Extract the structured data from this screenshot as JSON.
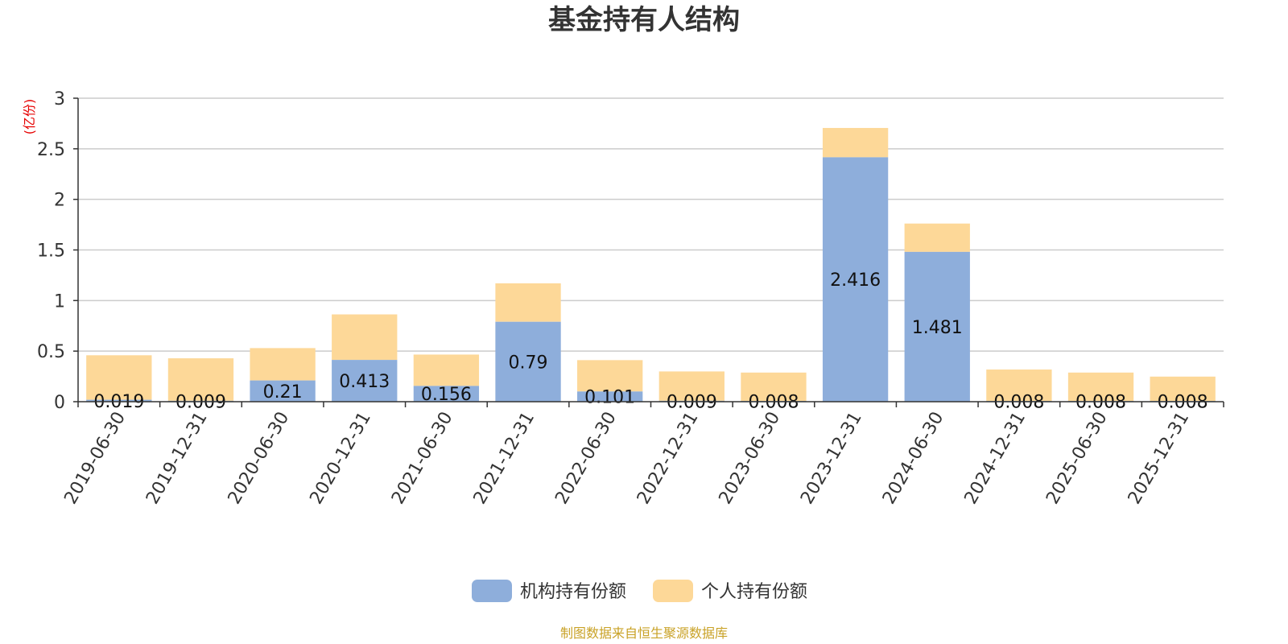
{
  "chart_data": {
    "type": "bar",
    "stacked": true,
    "title": "基金持有人结构",
    "ylabel": "(亿份)",
    "ylim": [
      0,
      3
    ],
    "yticks": [
      "0",
      "0.5",
      "1",
      "1.5",
      "2",
      "2.5",
      "3"
    ],
    "grid": true,
    "legend_position": "bottom",
    "categories": [
      "2019-06-30",
      "2019-12-31",
      "2020-06-30",
      "2020-12-31",
      "2021-06-30",
      "2021-12-31",
      "2022-06-30",
      "2022-12-31",
      "2023-06-30",
      "2023-12-31",
      "2024-06-30",
      "2024-12-31",
      "2025-06-30",
      "2025-12-31"
    ],
    "series": [
      {
        "name": "机构持有份额",
        "color": "#8eaedb",
        "values": [
          0.019,
          0.009,
          0.21,
          0.413,
          0.156,
          0.79,
          0.101,
          0.009,
          0.008,
          2.416,
          1.481,
          0.008,
          0.008,
          0.008
        ],
        "labels": [
          "0.019",
          "0.009",
          "0.21",
          "0.413",
          "0.156",
          "0.79",
          "0.101",
          "0.009",
          "0.008",
          "2.416",
          "1.481",
          "0.008",
          "0.008",
          "0.008"
        ]
      },
      {
        "name": "个人持有份额",
        "color": "#fdd898",
        "values": [
          0.44,
          0.42,
          0.32,
          0.45,
          0.31,
          0.38,
          0.31,
          0.29,
          0.28,
          0.29,
          0.28,
          0.31,
          0.28,
          0.24
        ]
      }
    ],
    "source": "制图数据来自恒生聚源数据库"
  }
}
